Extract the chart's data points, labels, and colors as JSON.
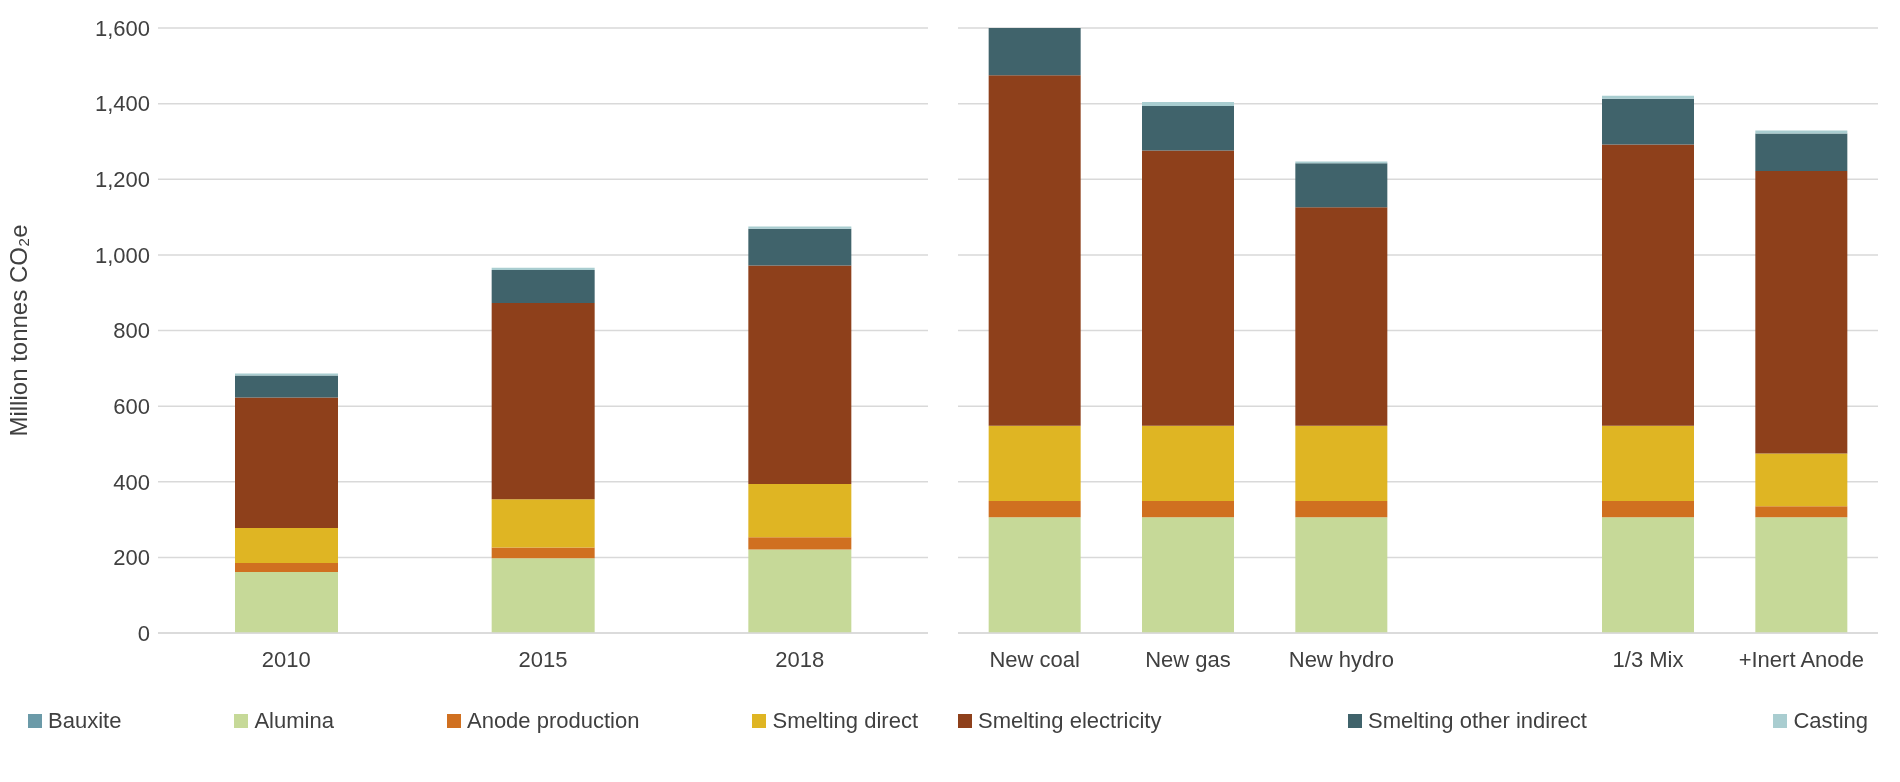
{
  "chart_data": [
    {
      "type": "bar",
      "stacked": true,
      "ylabel": "Million tonnes CO₂e",
      "categories": [
        "2010",
        "2015",
        "2018"
      ],
      "ylim": [
        0,
        1600
      ],
      "yticks": [
        {
          "value": 0,
          "label": "0"
        },
        {
          "value": 200,
          "label": "200"
        },
        {
          "value": 400,
          "label": "400"
        },
        {
          "value": 600,
          "label": "600"
        },
        {
          "value": 800,
          "label": "800"
        },
        {
          "value": 1000,
          "label": "1,000"
        },
        {
          "value": 1200,
          "label": "1,200"
        },
        {
          "value": 1400,
          "label": "1,400"
        },
        {
          "value": 1600,
          "label": "1,600"
        }
      ],
      "grid": "y",
      "legend": "bottom",
      "series": [
        {
          "name": "Bauxite",
          "color": "#6b9aa8",
          "values": [
            0,
            0,
            0
          ]
        },
        {
          "name": "Alumina",
          "color": "#c6d998",
          "values": [
            161,
            198,
            221
          ]
        },
        {
          "name": "Anode production",
          "color": "#d07020",
          "values": [
            24,
            28,
            32
          ]
        },
        {
          "name": "Smelting direct",
          "color": "#dfb523",
          "values": [
            93,
            128,
            141
          ]
        },
        {
          "name": "Smelting electricity",
          "color": "#8e401b",
          "values": [
            345,
            519,
            578
          ]
        },
        {
          "name": "Smelting other indirect",
          "color": "#40636b",
          "values": [
            58,
            87,
            97
          ]
        },
        {
          "name": "Casting",
          "color": "#a9cdd0",
          "values": [
            5,
            6,
            6
          ]
        }
      ]
    },
    {
      "type": "bar",
      "stacked": true,
      "categories": [
        "New coal",
        "New gas",
        "New hydro",
        null,
        "1/3 Mix",
        "+Inert Anode"
      ],
      "ylim": [
        0,
        1600
      ],
      "yticks": [
        0,
        200,
        400,
        600,
        800,
        1000,
        1200,
        1400,
        1600
      ],
      "grid": "y",
      "tick_labels": "x",
      "series": [
        {
          "color": "#6b9aa8",
          "values": [
            0,
            0,
            0,
            null,
            0,
            0
          ]
        },
        {
          "color": "#c6d998",
          "values": [
            306,
            306,
            306,
            null,
            306,
            306
          ]
        },
        {
          "color": "#d07020",
          "values": [
            43,
            43,
            43,
            null,
            43,
            29
          ]
        },
        {
          "color": "#dfb523",
          "values": [
            199,
            199,
            199,
            null,
            199,
            140
          ]
        },
        {
          "color": "#8e401b",
          "values": [
            927,
            728,
            578,
            null,
            744,
            747
          ]
        },
        {
          "color": "#40636b",
          "values": [
            125,
            118,
            116,
            null,
            121,
            99
          ]
        },
        {
          "color": "#a9cdd0",
          "values": [
            0,
            10,
            5,
            null,
            8,
            8
          ]
        }
      ]
    }
  ]
}
